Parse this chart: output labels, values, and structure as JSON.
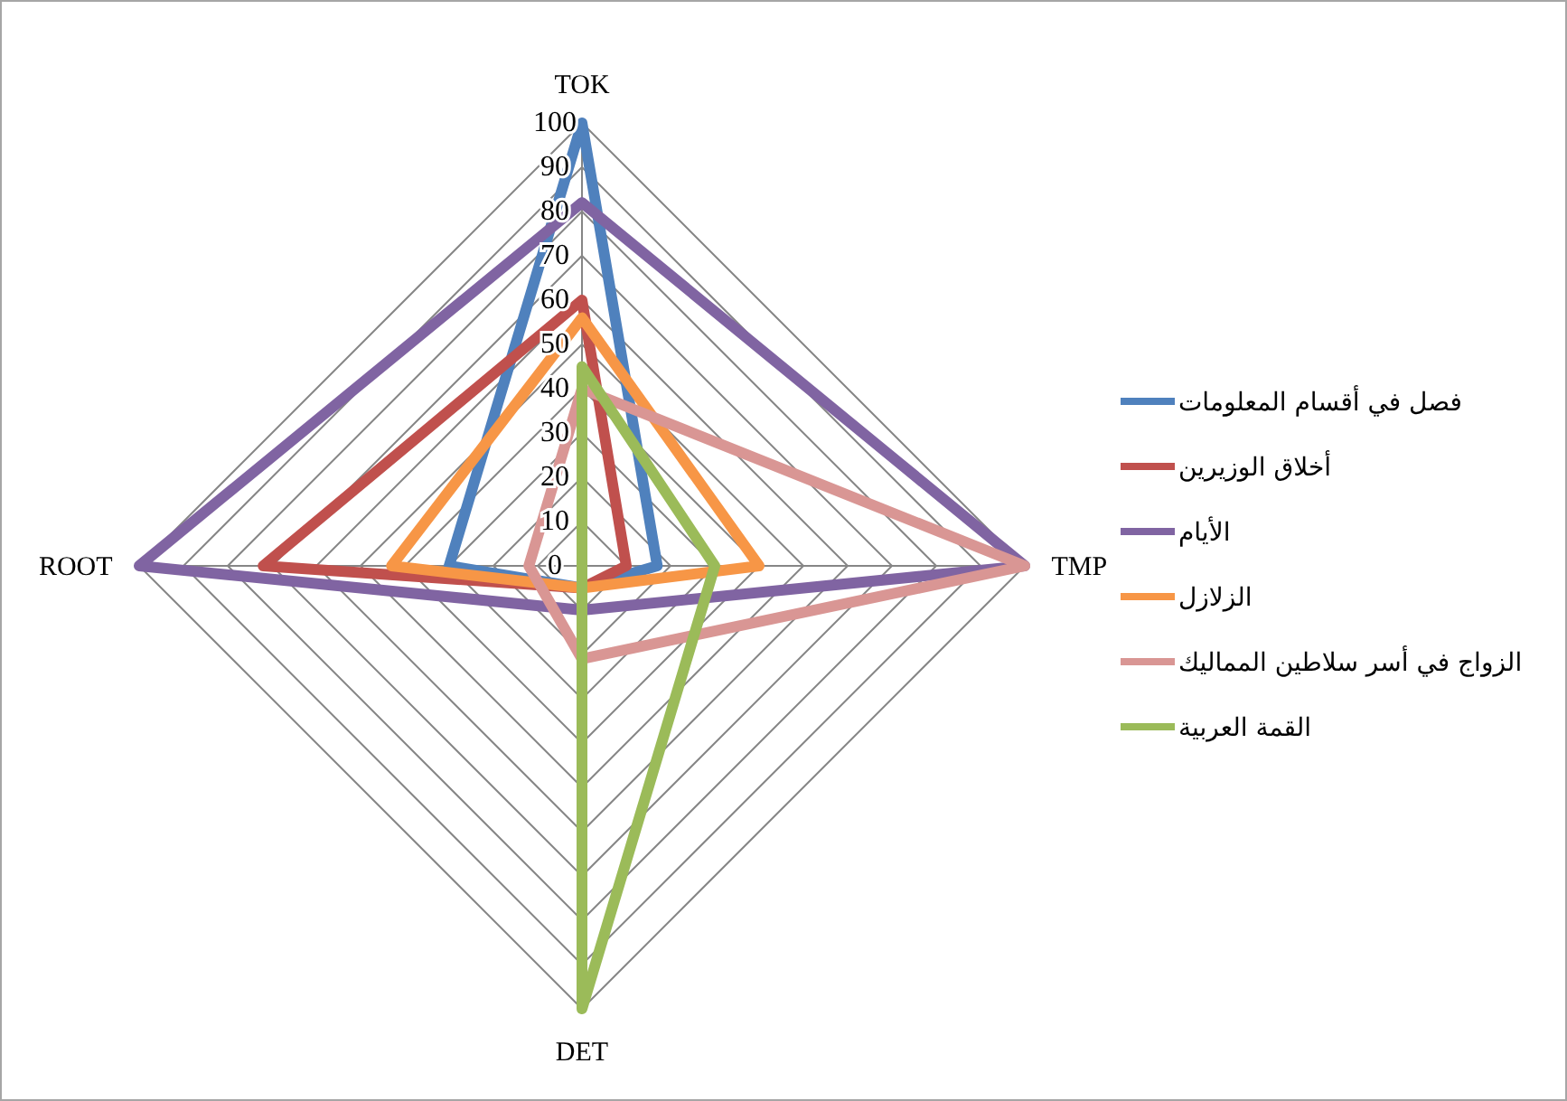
{
  "chart_data": {
    "type": "radar",
    "categories": [
      "TOK",
      "TMP",
      "DET",
      "ROOT"
    ],
    "ylim": [
      0,
      100
    ],
    "yticks": [
      0,
      10,
      20,
      30,
      40,
      50,
      60,
      70,
      80,
      90,
      100
    ],
    "grid": true,
    "legend": "right",
    "series": [
      {
        "name": "فصل في أقسام المعلومات",
        "color": "#4f81bd",
        "values": [
          100,
          17,
          5,
          30
        ]
      },
      {
        "name": "أخلاق الوزيرين",
        "color": "#c0504d",
        "values": [
          60,
          10,
          5,
          72
        ]
      },
      {
        "name": "الأيام",
        "color": "#8064a2",
        "values": [
          82,
          100,
          10,
          100
        ]
      },
      {
        "name": "الزلازل",
        "color": "#f79646",
        "values": [
          56,
          40,
          5,
          43
        ]
      },
      {
        "name": "الزواج في أسر سلاطين المماليك",
        "color": "#d99694",
        "values": [
          40,
          100,
          21,
          12
        ]
      },
      {
        "name": "القمة العربية",
        "color": "#9bbb59",
        "values": [
          45,
          30,
          100,
          0
        ]
      }
    ]
  }
}
